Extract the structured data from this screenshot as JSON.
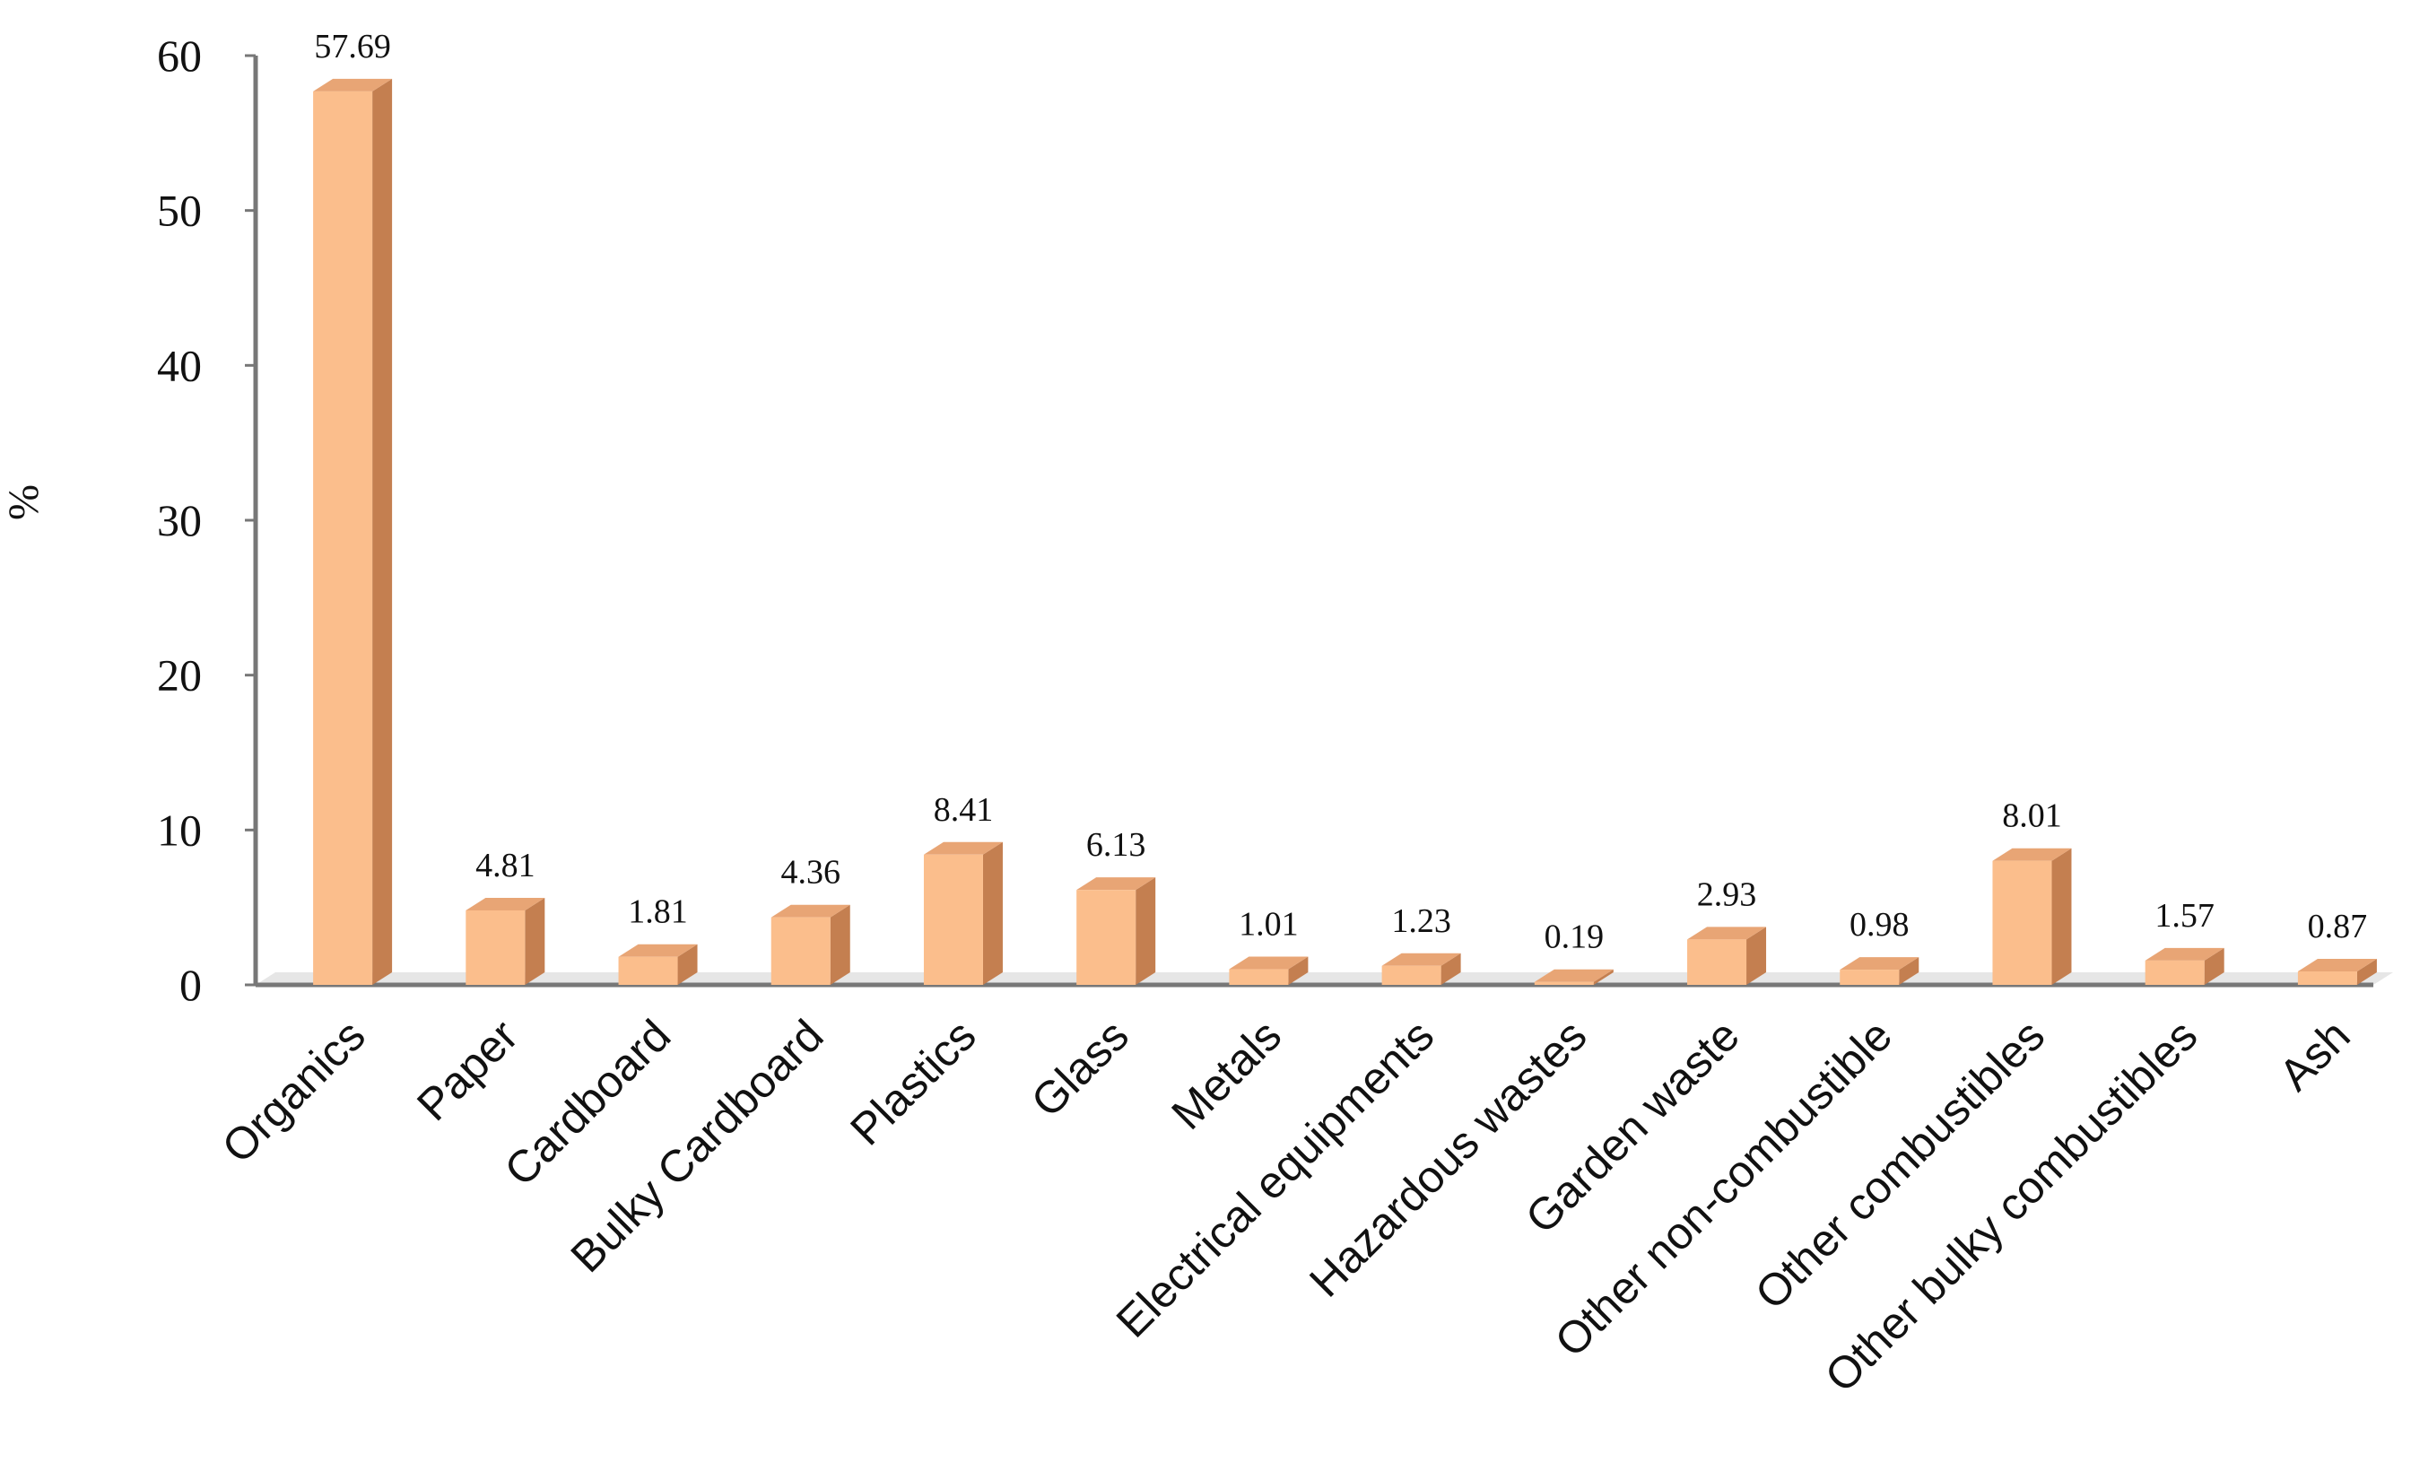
{
  "chart_data": {
    "type": "bar",
    "title": "",
    "xlabel": "",
    "ylabel": "%",
    "ylim": [
      0,
      60
    ],
    "yticks": [
      0,
      10,
      20,
      30,
      40,
      50,
      60
    ],
    "grid": false,
    "legend": "none",
    "style": "3d",
    "categories": [
      "Organics",
      "Paper",
      "Cardboard",
      "Bulky Cardboard",
      "Plastics",
      "Glass",
      "Metals",
      "Electrical equipments",
      "Hazardous wastes",
      "Garden waste",
      "Other non-combustible",
      "Other combustibles",
      "Other bulky combustibles",
      "Ash"
    ],
    "values": [
      57.69,
      4.81,
      1.81,
      4.36,
      8.41,
      6.13,
      1.01,
      1.23,
      0.19,
      2.93,
      0.98,
      8.01,
      1.57,
      0.87
    ],
    "data_labels": [
      "57.69",
      "4.81",
      "1.81",
      "4.36",
      "8.41",
      "6.13",
      "1.01",
      "1.23",
      "0.19",
      "2.93",
      "0.98",
      "8.01",
      "1.57",
      "0.87"
    ],
    "colors": {
      "bar_front": "#FBBE8C",
      "bar_side": "#C47F50",
      "bar_top": "#E8A575",
      "axis": "#777777"
    }
  }
}
